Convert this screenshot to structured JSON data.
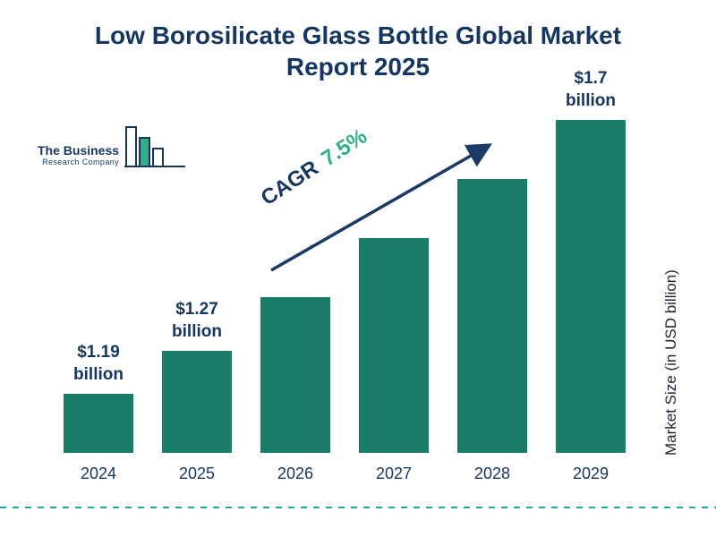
{
  "title": "Low Borosilicate Glass Bottle Global Market Report 2025",
  "logo": {
    "line1": "The Business",
    "line2": "Research Company"
  },
  "cagr": {
    "label": "CAGR",
    "value": "7.5%"
  },
  "y_axis_label": "Market Size (in USD billion)",
  "chart_data": {
    "type": "bar",
    "title": "Low Borosilicate Glass Bottle Global Market Report 2025",
    "xlabel": "",
    "ylabel": "Market Size (in USD billion)",
    "categories": [
      "2024",
      "2025",
      "2026",
      "2027",
      "2028",
      "2029"
    ],
    "values": [
      1.19,
      1.27,
      1.37,
      1.48,
      1.59,
      1.7
    ],
    "value_labels": [
      {
        "value": "$1.19",
        "unit": "billion"
      },
      {
        "value": "$1.27",
        "unit": "billion"
      },
      null,
      null,
      null,
      {
        "value": "$1.7",
        "unit": "billion"
      }
    ],
    "cagr_annotation": "CAGR 7.5%",
    "legend": "off",
    "grid": "off",
    "bar_color": "#1a7d6a"
  },
  "colors": {
    "bar": "#1a7d6a",
    "title_navy": "#15365e",
    "cagr_green": "#2fae88",
    "arrow_navy": "#1b3a64",
    "divider_teal": "#26a3a3"
  }
}
